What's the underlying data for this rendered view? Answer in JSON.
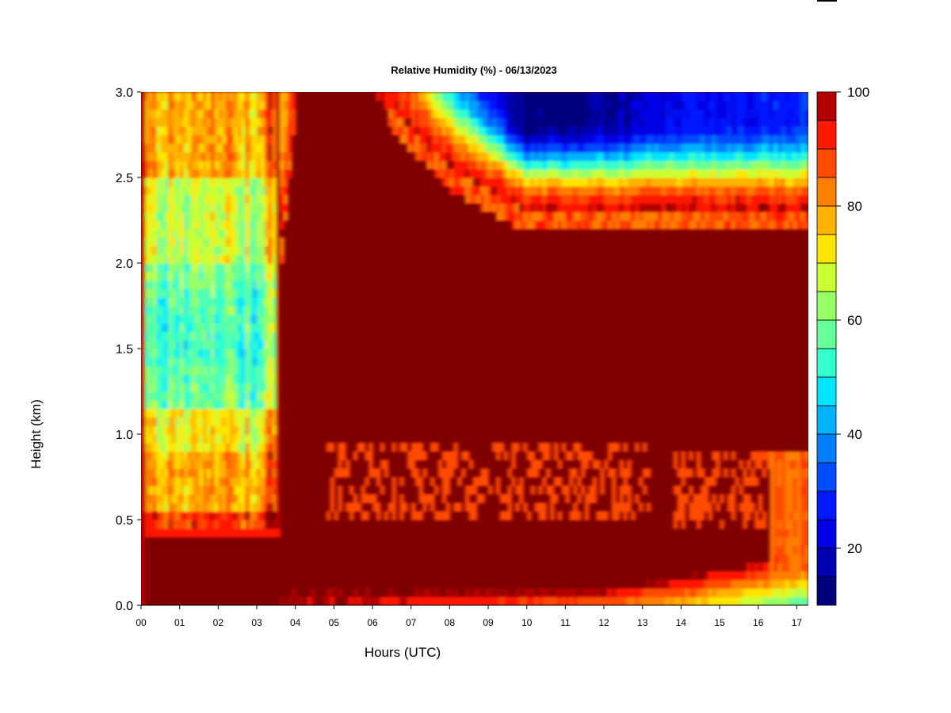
{
  "chart_data": {
    "type": "heatmap",
    "title": "Relative Humidity (%) - 06/13/2023",
    "xlabel": "Hours (UTC)",
    "ylabel": "Height (km)",
    "xlim": [
      0,
      17.3
    ],
    "ylim": [
      0,
      3.0
    ],
    "x_ticks": [
      "00",
      "01",
      "02",
      "03",
      "04",
      "05",
      "06",
      "07",
      "08",
      "09",
      "10",
      "11",
      "12",
      "13",
      "14",
      "15",
      "16",
      "17"
    ],
    "y_ticks": [
      "0.0",
      "0.5",
      "1.0",
      "1.5",
      "2.0",
      "2.5",
      "3.0"
    ],
    "colorbar": {
      "min": 10,
      "max": 100,
      "step": 5,
      "ticks": [
        "20",
        "40",
        "60",
        "80",
        "100"
      ],
      "colors": [
        "#00007f",
        "#0000b2",
        "#0000e5",
        "#0019ff",
        "#004cff",
        "#007fff",
        "#00b2ff",
        "#00e5ff",
        "#33ffcc",
        "#66ff99",
        "#99ff66",
        "#ccff33",
        "#ffe500",
        "#ffb200",
        "#ff7f00",
        "#ff4c00",
        "#ff1900",
        "#b20000"
      ]
    },
    "grid": false,
    "data_summary": {
      "hours": [
        0,
        1,
        2,
        3,
        4,
        6,
        8,
        10,
        12,
        14,
        16,
        17.3
      ],
      "cloud_base_km": [
        0.45,
        0.45,
        0.45,
        0.5,
        0.25,
        0.25,
        0.25,
        0.25,
        0.3,
        0.35,
        0.4,
        0.45
      ],
      "cloud_top_km": [
        0.45,
        0.45,
        0.45,
        0.5,
        3.0,
        3.0,
        2.55,
        2.3,
        2.3,
        2.3,
        2.3,
        2.3
      ],
      "rh_above_cloud_min_pct": [
        55,
        50,
        40,
        45,
        100,
        95,
        50,
        15,
        20,
        30,
        30,
        35
      ],
      "rh_near_surface_pct": [
        98,
        98,
        98,
        98,
        99,
        96,
        92,
        88,
        85,
        78,
        65,
        55
      ]
    }
  }
}
